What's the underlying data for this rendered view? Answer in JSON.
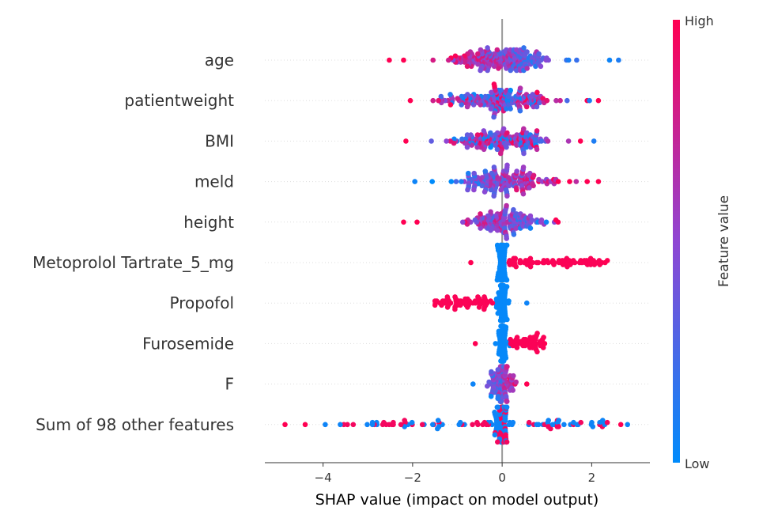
{
  "chart_data": {
    "type": "scatter",
    "subtype": "shap-beeswarm",
    "xlabel": "SHAP value (impact on model output)",
    "xlim": [
      -5.3,
      3.3
    ],
    "xticks": [
      -4,
      -2,
      0,
      2
    ],
    "xtick_labels": [
      "−4",
      "−2",
      "0",
      "2"
    ],
    "colorbar": {
      "title": "Feature value",
      "high_label": "High",
      "low_label": "Low",
      "low_color": "#008bfb",
      "mid_color": "#8f46d3",
      "high_color": "#ff0052"
    },
    "features": [
      {
        "name": "age",
        "min": -2.5,
        "max": 2.65,
        "spread": 0.6,
        "bias": 0.0,
        "n": 210,
        "density": 1.0,
        "color_rule": "left-high",
        "outliers": [
          [
            -2.52,
            1
          ],
          [
            -2.2,
            1
          ],
          [
            2.6,
            0.1
          ],
          [
            2.4,
            0.05
          ]
        ]
      },
      {
        "name": "patientweight",
        "min": -2.05,
        "max": 2.15,
        "spread": 0.55,
        "bias": 0.0,
        "n": 190,
        "density": 1.0,
        "color_rule": "mixed",
        "outliers": [
          [
            -2.05,
            1
          ],
          [
            2.15,
            1
          ],
          [
            1.95,
            0.1
          ],
          [
            1.9,
            1
          ]
        ]
      },
      {
        "name": "BMI",
        "min": -2.15,
        "max": 2.05,
        "spread": 0.55,
        "bias": 0.0,
        "n": 170,
        "density": 0.9,
        "color_rule": "mixed",
        "outliers": [
          [
            -2.15,
            1
          ],
          [
            2.05,
            0.1
          ],
          [
            1.75,
            1
          ]
        ]
      },
      {
        "name": "meld",
        "min": -1.95,
        "max": 2.15,
        "spread": 0.55,
        "bias": 0.0,
        "n": 180,
        "density": 1.0,
        "color_rule": "right-high",
        "outliers": [
          [
            -1.95,
            0.05
          ],
          [
            2.15,
            1
          ],
          [
            1.9,
            1
          ]
        ]
      },
      {
        "name": "height",
        "min": -2.2,
        "max": 1.25,
        "spread": 0.4,
        "bias": 0.0,
        "n": 150,
        "density": 0.9,
        "color_rule": "left-high",
        "outliers": [
          [
            -2.2,
            1
          ],
          [
            -1.9,
            1
          ],
          [
            1.25,
            1
          ],
          [
            1.2,
            1
          ]
        ]
      },
      {
        "name": "Metoprolol Tartrate_5_mg",
        "min": -0.7,
        "max": 2.35,
        "spread": 0.05,
        "bias": 0.0,
        "n": 140,
        "density": 0.5,
        "color_rule": "binary-right-high",
        "outliers": [
          [
            2.3,
            1
          ],
          [
            2.35,
            1
          ],
          [
            -0.7,
            1
          ]
        ]
      },
      {
        "name": "Propofol",
        "min": -1.5,
        "max": 0.6,
        "spread": 0.05,
        "bias": 0.0,
        "n": 130,
        "density": 0.5,
        "color_rule": "binary-left-high",
        "outliers": [
          [
            -1.5,
            1
          ],
          [
            0.55,
            0.05
          ]
        ]
      },
      {
        "name": "Furosemide",
        "min": -0.6,
        "max": 0.95,
        "spread": 0.05,
        "bias": 0.0,
        "n": 120,
        "density": 0.5,
        "color_rule": "binary-right-high",
        "outliers": [
          [
            0.95,
            1
          ],
          [
            -0.6,
            1
          ]
        ]
      },
      {
        "name": "F",
        "min": -0.65,
        "max": 0.55,
        "spread": 0.15,
        "bias": 0.0,
        "n": 110,
        "density": 0.6,
        "color_rule": "right-high",
        "outliers": [
          [
            -0.65,
            0.05
          ],
          [
            0.55,
            1
          ]
        ]
      },
      {
        "name": "Sum of 98 other features",
        "min": -4.85,
        "max": 2.8,
        "spread": 0.05,
        "bias": 0.0,
        "n": 200,
        "density": 0.6,
        "color_rule": "mixed",
        "outliers": [
          [
            -4.85,
            1
          ],
          [
            -4.4,
            1
          ],
          [
            -3.95,
            0.05
          ],
          [
            2.8,
            0.05
          ],
          [
            2.65,
            1
          ]
        ]
      }
    ],
    "zero_line": 0,
    "grid": false,
    "legend": "colorbar-right"
  }
}
